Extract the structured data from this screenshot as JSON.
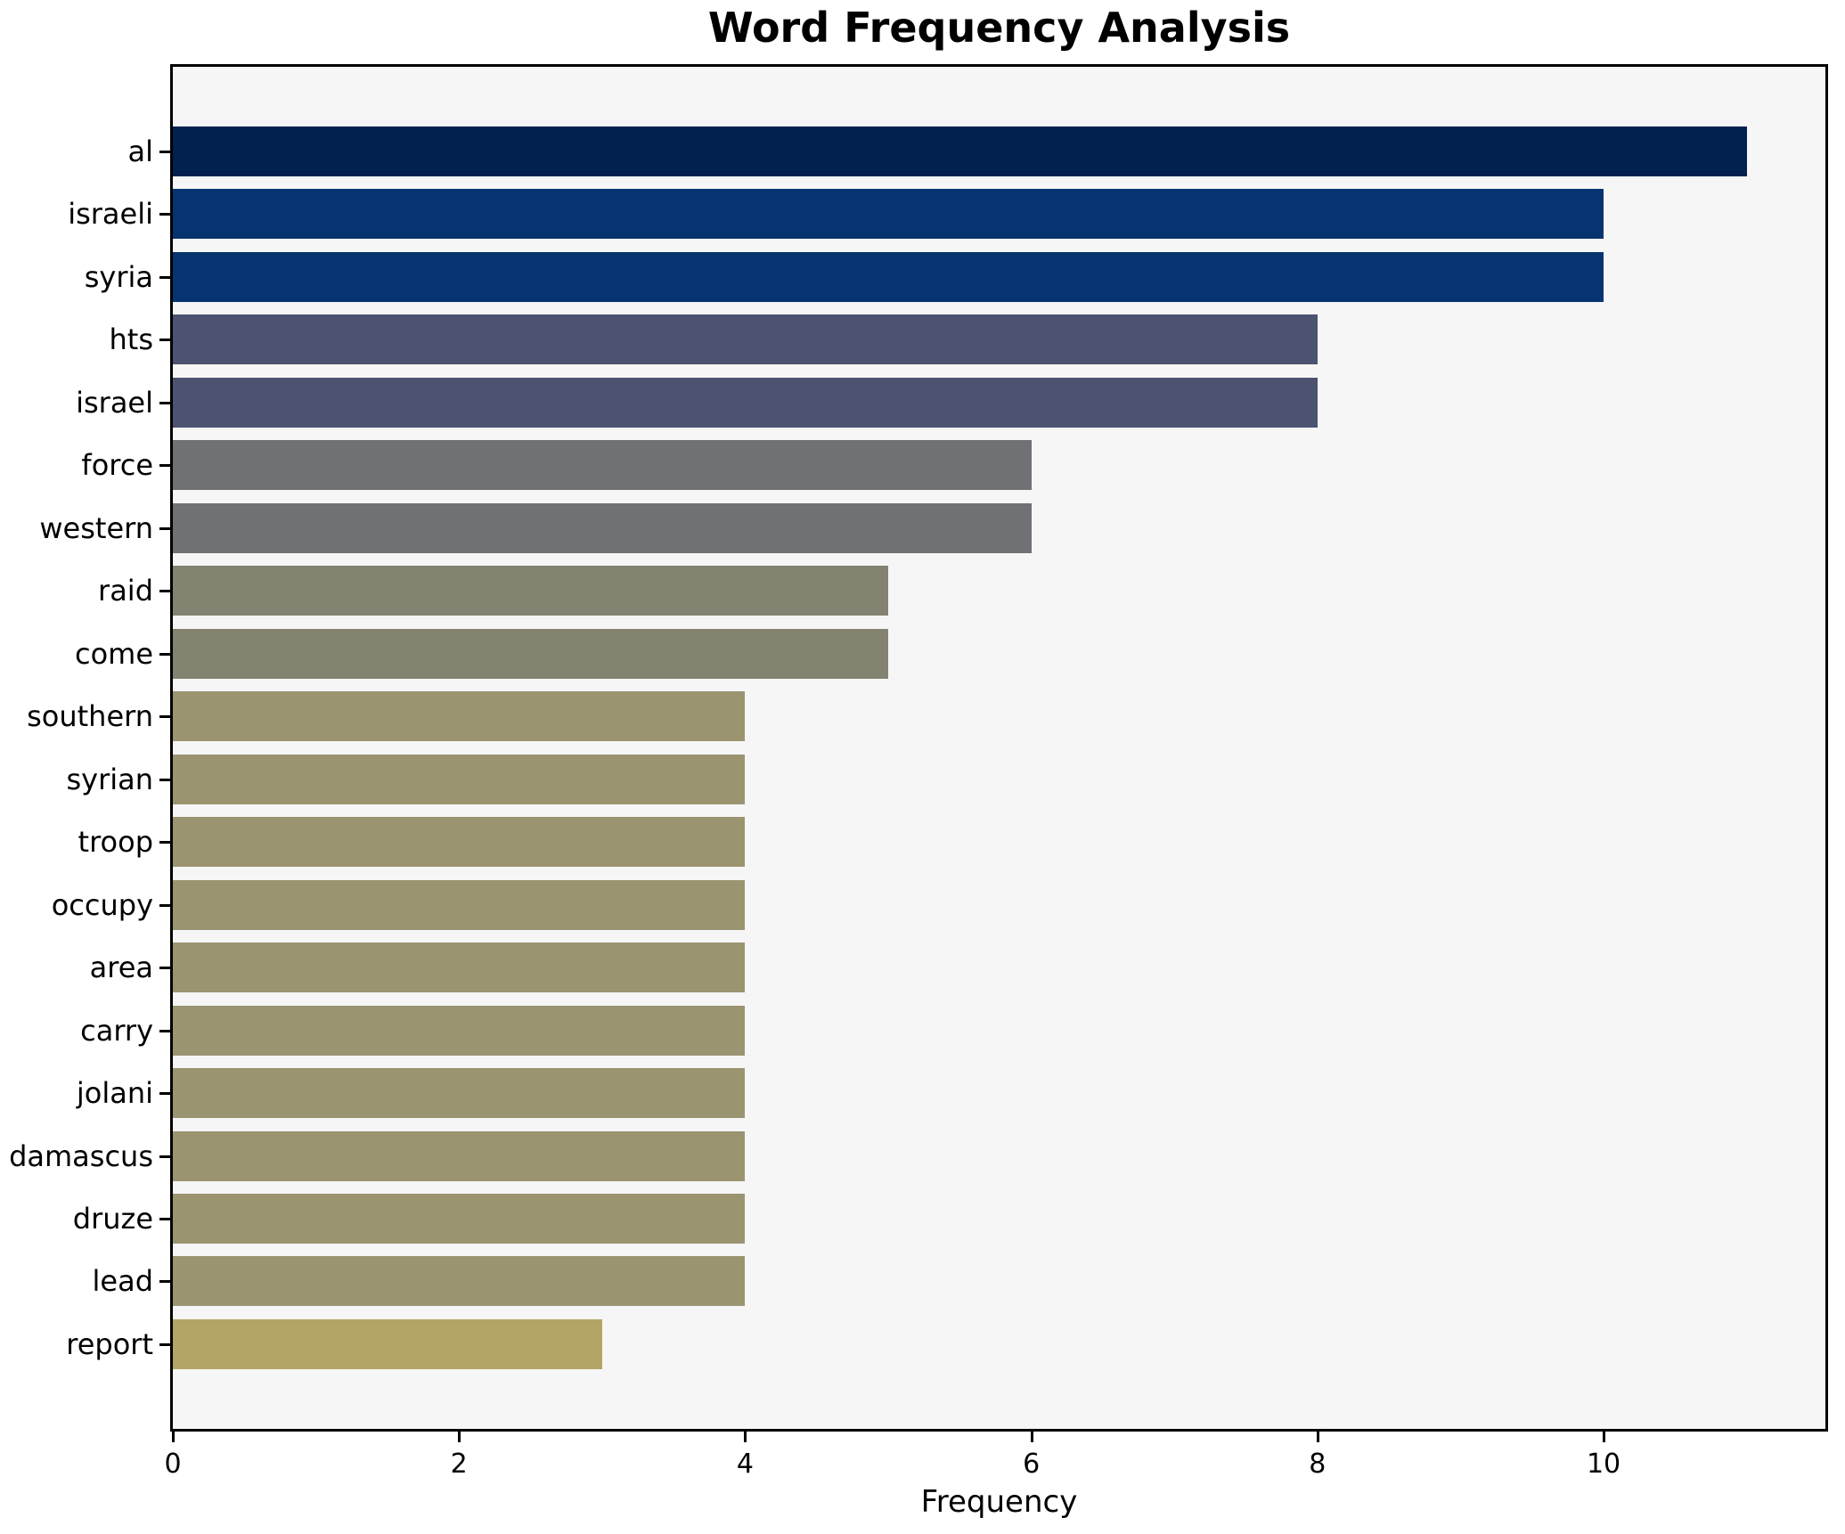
{
  "chart_data": {
    "type": "bar",
    "orientation": "horizontal",
    "title": "Word Frequency Analysis",
    "xlabel": "Frequency",
    "ylabel": "",
    "categories": [
      "al",
      "israeli",
      "syria",
      "hts",
      "israel",
      "force",
      "western",
      "raid",
      "come",
      "southern",
      "syrian",
      "troop",
      "occupy",
      "area",
      "carry",
      "jolani",
      "damascus",
      "druze",
      "lead",
      "report"
    ],
    "values": [
      11,
      10,
      10,
      8,
      8,
      6,
      6,
      5,
      5,
      4,
      4,
      4,
      4,
      4,
      4,
      4,
      4,
      4,
      4,
      3
    ],
    "bar_colors": [
      "#02224d",
      "#073470",
      "#073470",
      "#4c5370",
      "#4c5370",
      "#707174",
      "#707174",
      "#848371",
      "#848371",
      "#9b9471",
      "#9b9471",
      "#9b9471",
      "#9b9471",
      "#9b9471",
      "#9b9471",
      "#9b9471",
      "#9b9471",
      "#9b9471",
      "#9b9471",
      "#b3a566"
    ],
    "xlim": [
      0,
      11.55
    ],
    "x_ticks": [
      0,
      2,
      4,
      6,
      8,
      10
    ],
    "grid": false,
    "legend": null,
    "plot_bg": "#f6f6f7",
    "figure_bg": "#ffffff",
    "spine_color": "#000000"
  }
}
